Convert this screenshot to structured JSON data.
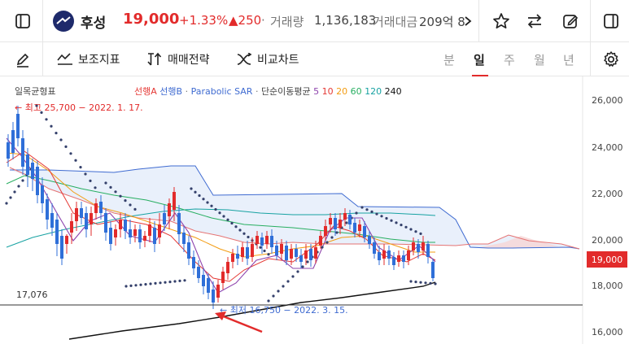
{
  "header": {
    "stock_name": "후성",
    "price": "19,000",
    "change_pct": "+1.33%",
    "change_amt": "▲250",
    "volume_label": "거래량",
    "volume_value": "1,136,183",
    "value_label": "거래대금",
    "value_value": "209억 8",
    "separator": "·"
  },
  "toolbar": {
    "indicator_label": "보조지표",
    "trade_strategy_label": "매매전략",
    "compare_label": "비교차트",
    "periods": [
      "분",
      "일",
      "주",
      "월",
      "년"
    ],
    "active_period": "일"
  },
  "chart": {
    "legend_ichimoku": "일목균형표",
    "legend_leadA": "선행A",
    "legend_leadB": "선행B",
    "legend_sar": "Parabolic SAR",
    "legend_dot": "·",
    "legend_ma": "단순이동평균",
    "ma_periods": [
      "5",
      "10",
      "20",
      "60",
      "120",
      "240"
    ],
    "y_ticks": [
      "26,000",
      "24,000",
      "22,000",
      "20,000",
      "18,000",
      "16,000"
    ],
    "current_price_tag": "19,000",
    "high_annotation": "← 최고 25,700 − 2022. 1. 17.",
    "low_annotation": "← 최저 16,750 − 2022. 3. 15.",
    "level_label": "17,076"
  },
  "colors": {
    "up": "#e22b2b",
    "down": "#2f6fd8",
    "leadA": "#e53935",
    "leadB": "#3f6bd1",
    "ma5": "#8e44ad",
    "ma10": "#e53935",
    "ma20": "#f39c12",
    "ma60": "#27ae60",
    "ma120": "#17a2a2",
    "ma240": "#111111"
  }
}
